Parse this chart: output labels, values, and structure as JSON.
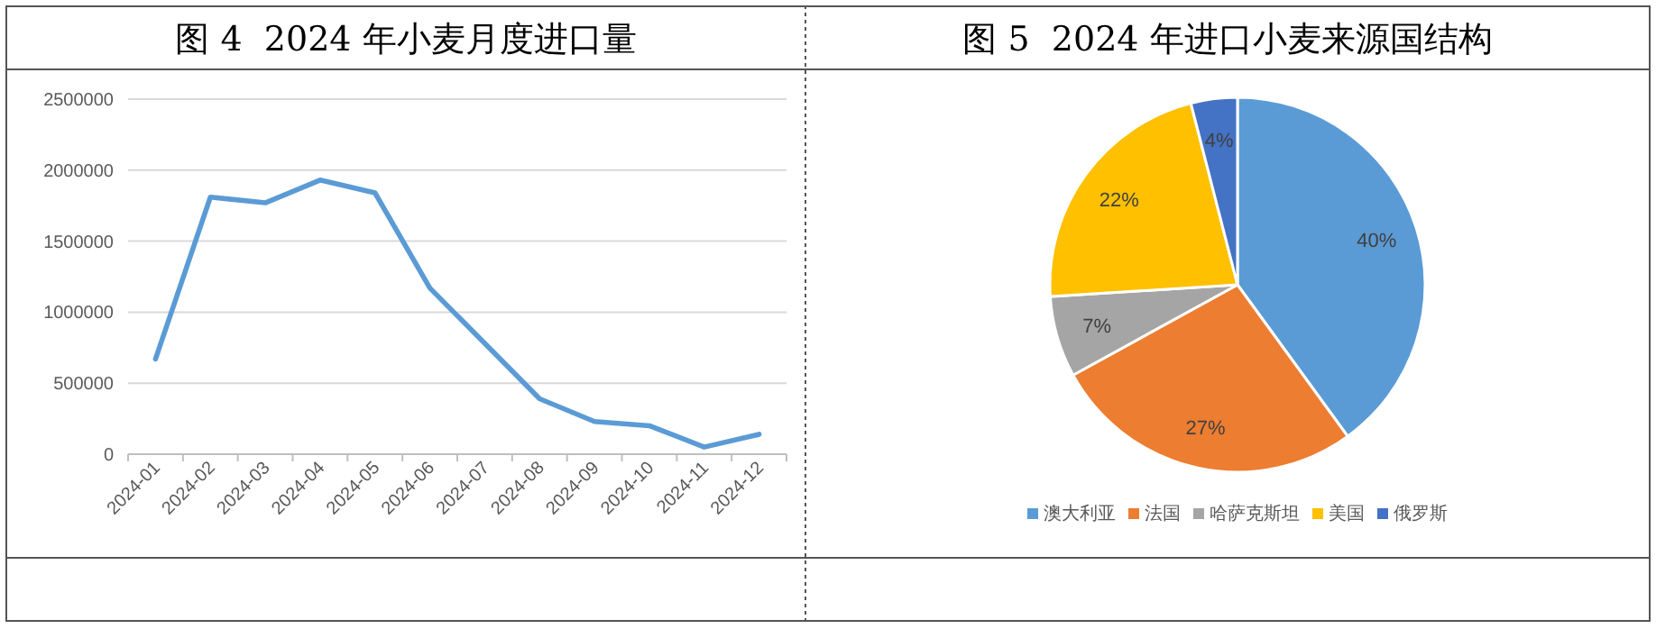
{
  "chart_data": [
    {
      "type": "line",
      "title": "图 4  2024 年小麦月度进口量",
      "categories": [
        "2024-01",
        "2024-02",
        "2024-03",
        "2024-04",
        "2024-05",
        "2024-06",
        "2024-07",
        "2024-08",
        "2024-09",
        "2024-10",
        "2024-11",
        "2024-12"
      ],
      "series": [
        {
          "color": "#5b9bd5",
          "values": [
            670000,
            1810000,
            1770000,
            1930000,
            1840000,
            1170000,
            780000,
            390000,
            230000,
            200000,
            50000,
            140000
          ]
        }
      ],
      "ylim": [
        0,
        2500000
      ],
      "yticks": [
        0,
        500000,
        1000000,
        1500000,
        2000000,
        2500000
      ],
      "grid": "y"
    },
    {
      "type": "pie",
      "title": "图 5  2024 年进口小麦来源国结构",
      "categories": [
        "澳大利亚",
        "法国",
        "哈萨克斯坦",
        "美国",
        "俄罗斯"
      ],
      "values": [
        40,
        27,
        7,
        22,
        4
      ],
      "colors": [
        "#5b9bd5",
        "#ed7d31",
        "#a5a5a5",
        "#ffc000",
        "#4472c4"
      ],
      "value_labels": [
        "40%",
        "27%",
        "7%",
        "22%",
        "4%"
      ],
      "legend": "bottom"
    }
  ]
}
